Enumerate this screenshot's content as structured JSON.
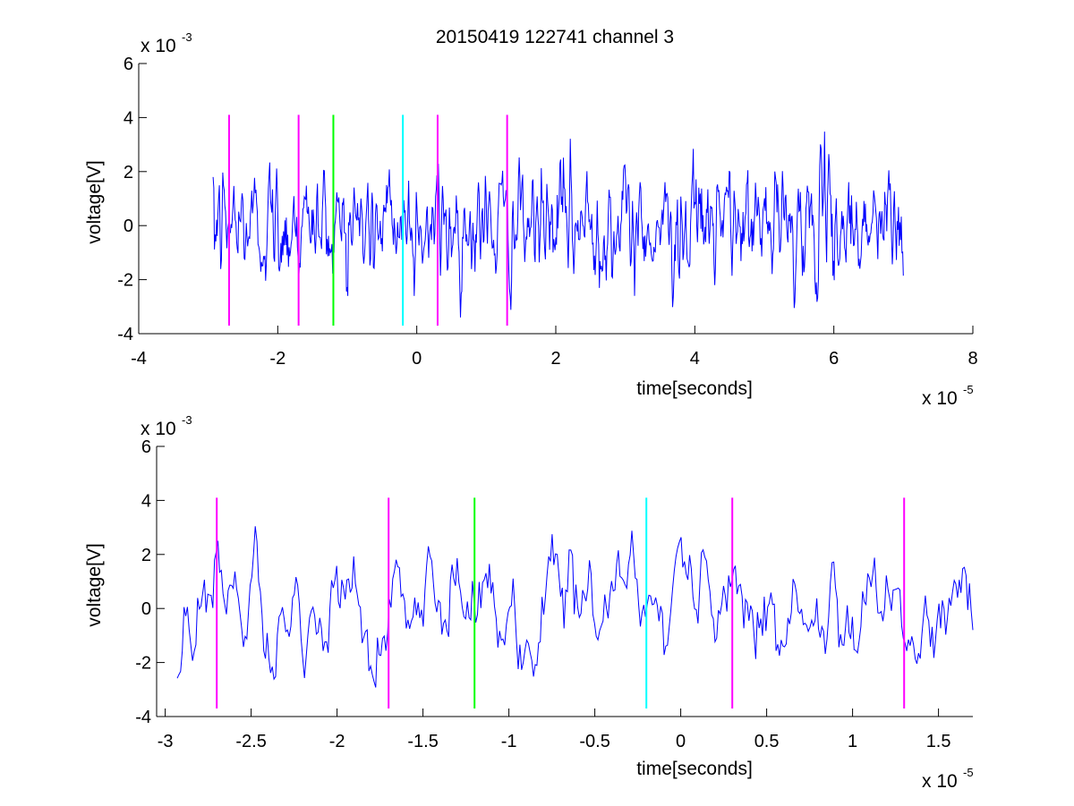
{
  "figure": {
    "title": "20150419 122741 channel 3"
  },
  "chart_data": [
    {
      "type": "line",
      "title": "20150419 122741 channel 3",
      "xlabel": "time[seconds]",
      "ylabel": "voltage[V]",
      "xlim": [
        -4e-05,
        8e-05
      ],
      "ylim": [
        -0.004,
        0.006
      ],
      "x_ticks": [
        -4e-05,
        -2e-05,
        0,
        2e-05,
        4e-05,
        6e-05,
        8e-05
      ],
      "x_tick_labels": [
        "-4",
        "-2",
        "0",
        "2",
        "4",
        "6",
        "8"
      ],
      "y_ticks": [
        -0.004,
        -0.002,
        0,
        0.002,
        0.004,
        0.006
      ],
      "y_tick_labels": [
        "-4",
        "-2",
        "0",
        "2",
        "4",
        "6"
      ],
      "x_exponent": "x 10",
      "x_exponent_power": "-5",
      "y_exponent": "x 10",
      "y_exponent_power": "-3",
      "grid": false,
      "series": [
        {
          "color": "#0000ff",
          "x_range": [
            -2.93e-05,
            7e-05
          ],
          "values_description_note": "noisy signal"
        }
      ],
      "vlines": [
        {
          "x": -2.7e-05,
          "color": "#ff00ff",
          "ymin": -0.0037,
          "ymax": 0.0041
        },
        {
          "x": -1.7e-05,
          "color": "#ff00ff",
          "ymin": -0.0037,
          "ymax": 0.0041
        },
        {
          "x": -1.2e-05,
          "color": "#00ff00",
          "ymin": -0.0037,
          "ymax": 0.0041
        },
        {
          "x": -2e-06,
          "color": "#00ffff",
          "ymin": -0.0037,
          "ymax": 0.0041
        },
        {
          "x": 3e-06,
          "color": "#ff00ff",
          "ymin": -0.0037,
          "ymax": 0.0041
        },
        {
          "x": 1.3e-05,
          "color": "#ff00ff",
          "ymin": -0.0037,
          "ymax": 0.0041
        }
      ]
    },
    {
      "type": "line",
      "title": "",
      "xlabel": "time[seconds]",
      "ylabel": "voltage[V]",
      "xlim": [
        -3.05e-05,
        1.7e-05
      ],
      "ylim": [
        -0.004,
        0.006
      ],
      "x_ticks": [
        -3e-05,
        -2.5e-05,
        -2e-05,
        -1.5e-05,
        -1e-05,
        -5e-06,
        0,
        5e-06,
        1e-05,
        1.5e-05
      ],
      "x_tick_labels": [
        "-3",
        "-2.5",
        "-2",
        "-1.5",
        "-1",
        "-0.5",
        "0",
        "0.5",
        "1",
        "1.5"
      ],
      "y_ticks": [
        -0.004,
        -0.002,
        0,
        0.002,
        0.004,
        0.006
      ],
      "y_tick_labels": [
        "-4",
        "-2",
        "0",
        "2",
        "4",
        "6"
      ],
      "x_exponent": "x 10",
      "x_exponent_power": "-5",
      "y_exponent": "x 10",
      "y_exponent_power": "-3",
      "grid": false,
      "series": [
        {
          "color": "#0000ff",
          "x_range": [
            -2.93e-05,
            1.7e-05
          ]
        }
      ],
      "vlines": [
        {
          "x": -2.7e-05,
          "color": "#ff00ff",
          "ymin": -0.0037,
          "ymax": 0.0041
        },
        {
          "x": -1.7e-05,
          "color": "#ff00ff",
          "ymin": -0.0037,
          "ymax": 0.0041
        },
        {
          "x": -1.2e-05,
          "color": "#00ff00",
          "ymin": -0.0037,
          "ymax": 0.0041
        },
        {
          "x": -2e-06,
          "color": "#00ffff",
          "ymin": -0.0037,
          "ymax": 0.0041
        },
        {
          "x": 3e-06,
          "color": "#ff00ff",
          "ymin": -0.0037,
          "ymax": 0.0041
        },
        {
          "x": 1.3e-05,
          "color": "#ff00ff",
          "ymin": -0.0037,
          "ymax": 0.0041
        }
      ]
    }
  ]
}
